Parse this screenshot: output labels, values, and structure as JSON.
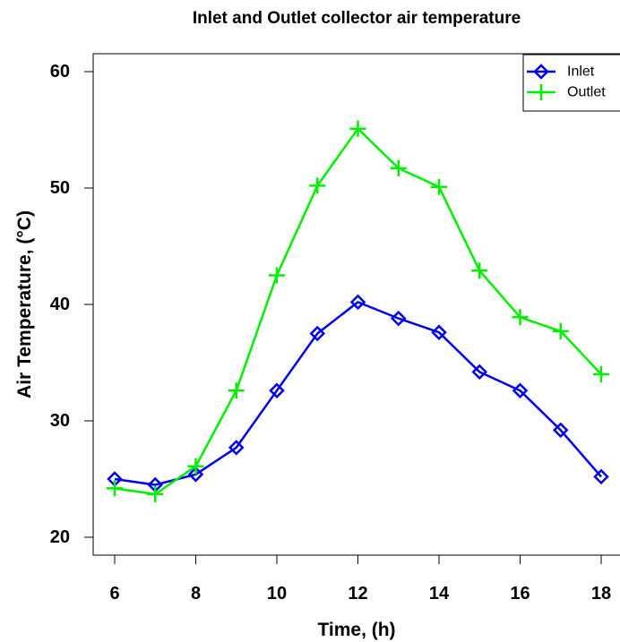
{
  "chart_data": {
    "type": "line",
    "title": "Inlet and Outlet collector air temperature",
    "xlabel": "Time, (h)",
    "ylabel": "Air Temperature, (°C)",
    "xlim": [
      6,
      18
    ],
    "ylim": [
      20,
      60
    ],
    "xticks": [
      6,
      8,
      10,
      12,
      14,
      16,
      18
    ],
    "yticks": [
      20,
      30,
      40,
      50,
      60
    ],
    "grid": false,
    "legend_position": "top-right",
    "x": [
      6,
      7,
      8,
      9,
      10,
      11,
      12,
      13,
      14,
      15,
      16,
      17,
      18
    ],
    "series": [
      {
        "name": "Inlet",
        "color": "#0000ee",
        "marker": "diamond",
        "values": [
          25.0,
          24.5,
          25.4,
          27.7,
          32.6,
          37.5,
          40.2,
          38.8,
          37.6,
          34.2,
          32.6,
          29.2,
          25.2
        ]
      },
      {
        "name": "Outlet",
        "color": "#00ee00",
        "marker": "plus",
        "values": [
          24.2,
          23.7,
          26.1,
          32.6,
          42.5,
          50.2,
          55.1,
          51.7,
          50.1,
          42.9,
          38.9,
          37.7,
          34.0
        ]
      }
    ]
  }
}
